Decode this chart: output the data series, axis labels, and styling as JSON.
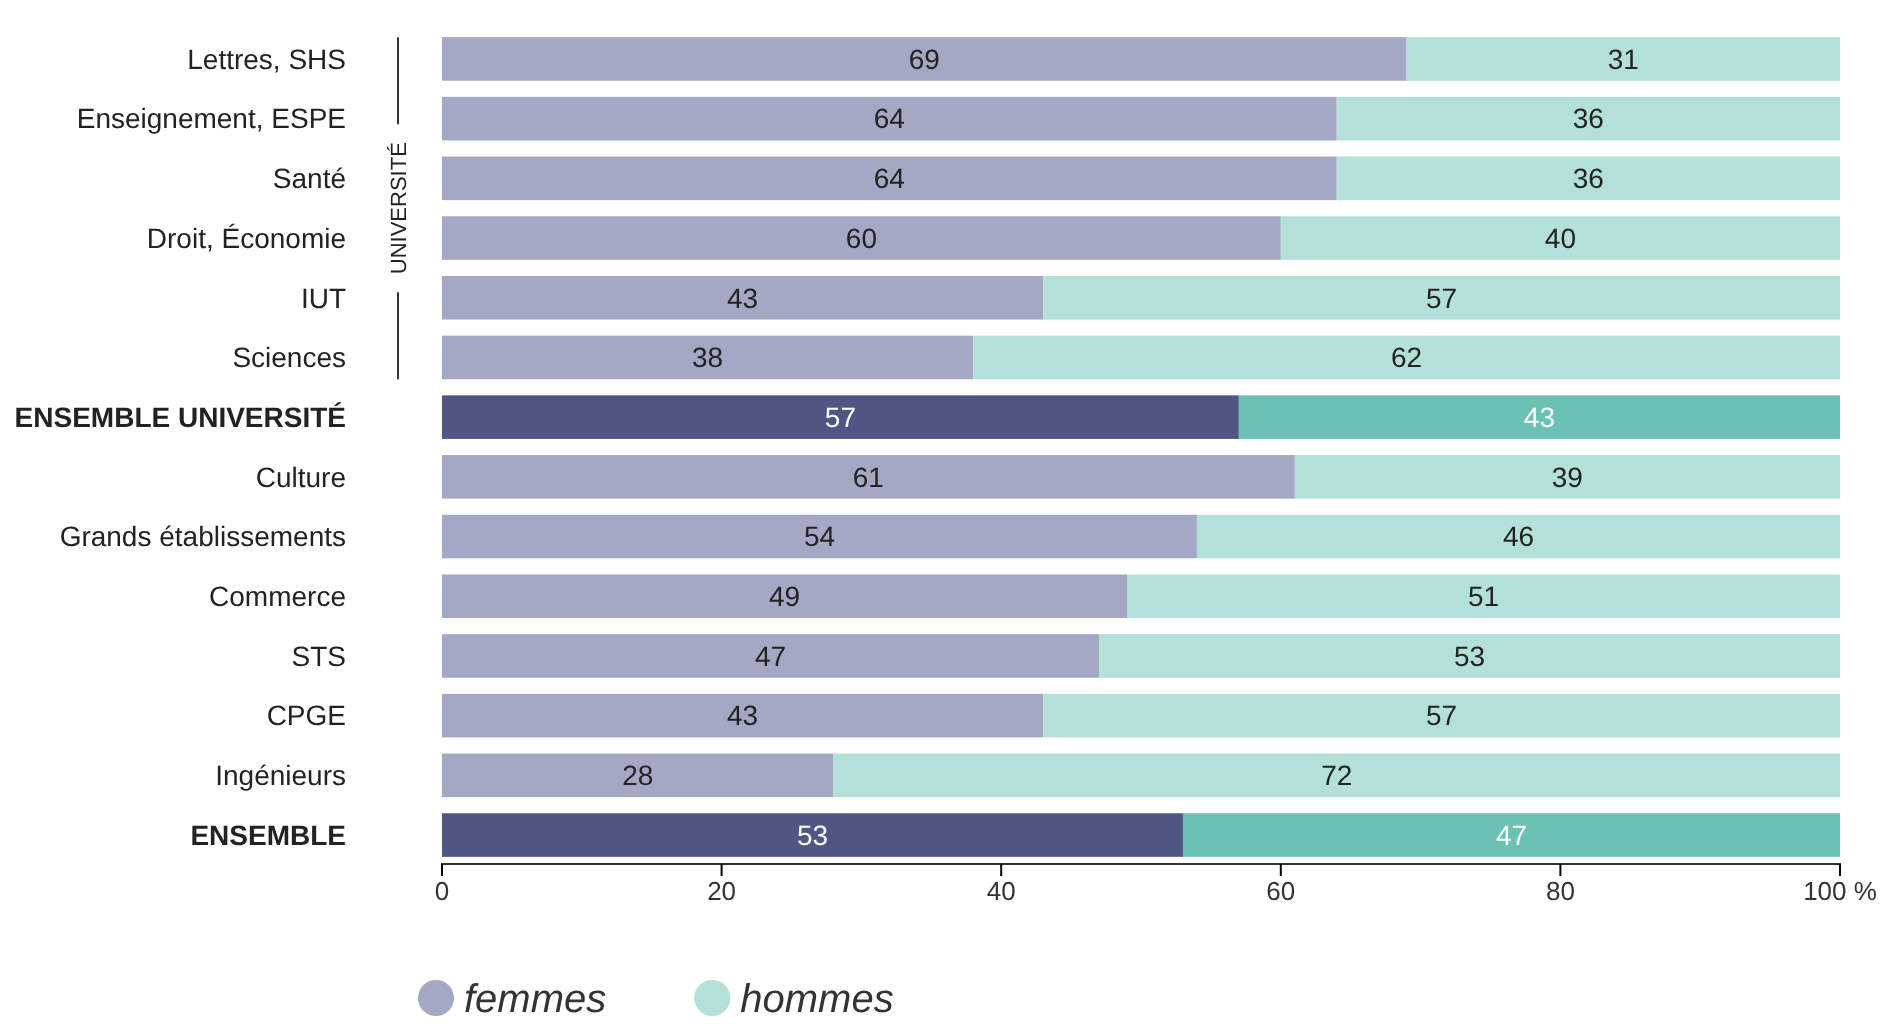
{
  "chart_data": {
    "type": "bar",
    "orientation": "horizontal",
    "stacked": true,
    "categories": [
      "Lettres, SHS",
      "Enseignement, ESPE",
      "Santé",
      "Droit, Économie",
      "IUT",
      "Sciences",
      "ENSEMBLE UNIVERSITÉ",
      "Culture",
      "Grands établissements",
      "Commerce",
      "STS",
      "CPGE",
      "Ingénieurs",
      "ENSEMBLE"
    ],
    "series": [
      {
        "name": "femmes",
        "color": "#a5a8c4",
        "colors": [
          "#a5a8c4",
          "#a5a8c4",
          "#a5a8c4",
          "#a5a8c4",
          "#a5a8c4",
          "#a5a8c4",
          "#4f5684",
          "#a5a8c4",
          "#a5a8c4",
          "#a5a8c4",
          "#a5a8c4",
          "#a5a8c4",
          "#a5a8c4",
          "#4f5684"
        ],
        "values": [
          69,
          64,
          64,
          60,
          43,
          38,
          57,
          61,
          54,
          49,
          47,
          43,
          28,
          53
        ]
      },
      {
        "name": "hommes",
        "color": "#b3e0d9",
        "colors": [
          "#b3e0d9",
          "#b3e0d9",
          "#b3e0d9",
          "#b3e0d9",
          "#b3e0d9",
          "#b3e0d9",
          "#6bc1b4",
          "#b3e0d9",
          "#b3e0d9",
          "#b3e0d9",
          "#b3e0d9",
          "#b3e0d9",
          "#b3e0d9",
          "#6bc1b4"
        ],
        "values": [
          31,
          36,
          36,
          40,
          57,
          62,
          43,
          39,
          46,
          51,
          53,
          57,
          72,
          47
        ]
      }
    ],
    "xlim": [
      0,
      100
    ],
    "xticks": [
      0,
      20,
      40,
      60,
      80,
      {
        "value": 100,
        "label": "100 %"
      }
    ],
    "data_labels": true,
    "grid": false,
    "legend": "bottom left",
    "annotations": [
      "UNIVERSITÉ"
    ]
  }
}
